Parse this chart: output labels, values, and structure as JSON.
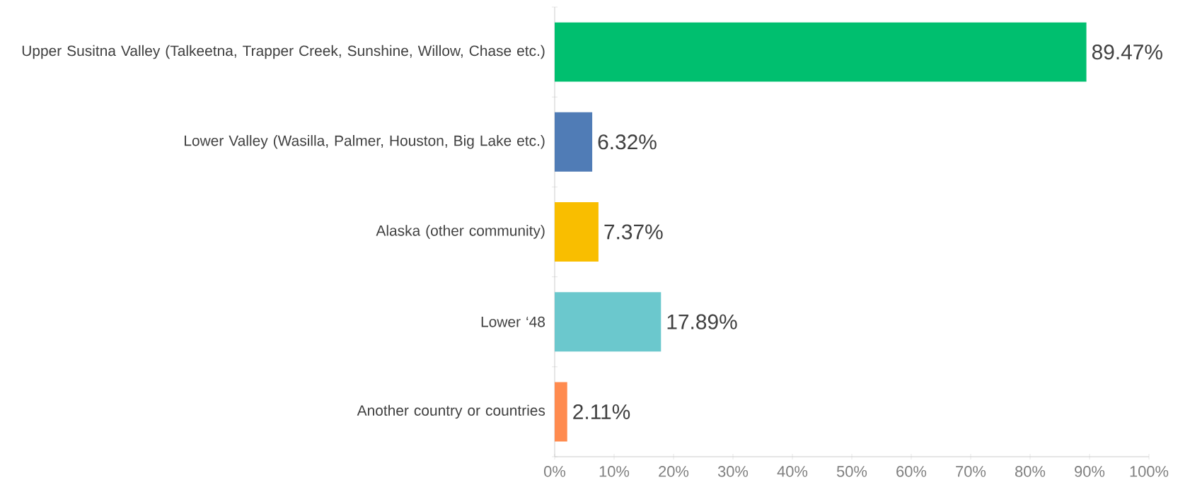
{
  "chart_data": {
    "type": "bar",
    "orientation": "horizontal",
    "categories": [
      "Upper Susitna Valley (Talkeetna, Trapper Creek, Sunshine, Willow, Chase etc.)",
      "Lower Valley (Wasilla, Palmer, Houston, Big Lake etc.)",
      "Alaska (other community)",
      "Lower ‘48",
      "Another country or countries"
    ],
    "values": [
      89.47,
      6.32,
      7.37,
      17.89,
      2.11
    ],
    "colors": [
      "#00bf6f",
      "#507cb6",
      "#f9be00",
      "#6bc8cd",
      "#ff8b4f"
    ],
    "value_labels": [
      "89.47%",
      "6.32%",
      "7.37%",
      "17.89%",
      "2.11%"
    ],
    "xlim": [
      0,
      100
    ],
    "xticks": [
      {
        "value": 0,
        "label": "0%"
      },
      {
        "value": 10,
        "label": "10%"
      },
      {
        "value": 20,
        "label": "20%"
      },
      {
        "value": 30,
        "label": "30%"
      },
      {
        "value": 40,
        "label": "40%"
      },
      {
        "value": 50,
        "label": "50%"
      },
      {
        "value": 60,
        "label": "60%"
      },
      {
        "value": 70,
        "label": "70%"
      },
      {
        "value": 80,
        "label": "80%"
      },
      {
        "value": 90,
        "label": "90%"
      },
      {
        "value": 100,
        "label": "100%"
      }
    ]
  }
}
